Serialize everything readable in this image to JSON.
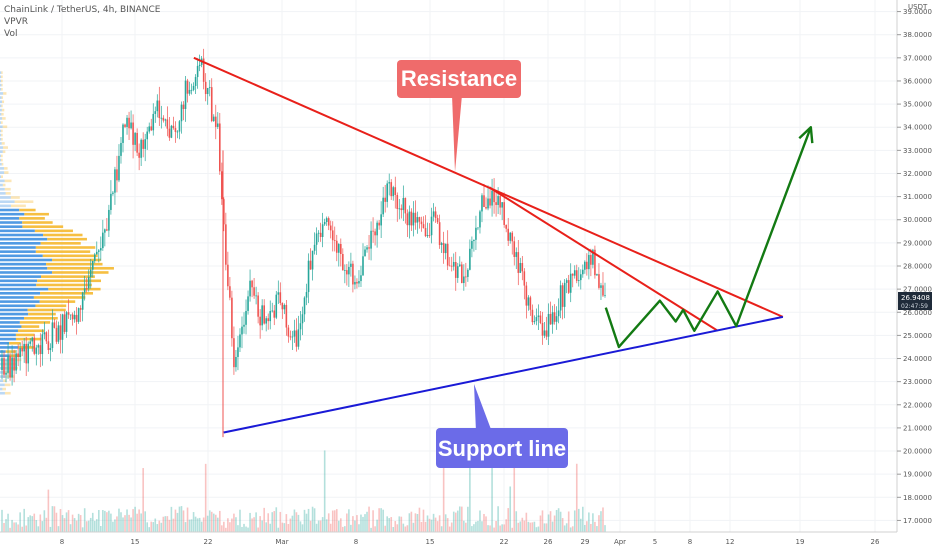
{
  "header": {
    "symbol_line": "ChainLink / TetherUS, 4h, BINANCE",
    "indicator_1": "VPVR",
    "indicator_2": "Vol",
    "currency": "USDT"
  },
  "price_badge": {
    "price": "26.9408",
    "countdown": "02:47:59"
  },
  "callouts": {
    "resistance": "Resistance",
    "support": "Support line"
  },
  "colors": {
    "resistance": "#e8201a",
    "support": "#1a1ad6",
    "projection": "#137a13",
    "callout_red": "#ef6b6b",
    "callout_blue": "#6b6be8",
    "candle_up": "#26a69a",
    "candle_down": "#ef5350",
    "vp_blue": "#3d8fe0",
    "vp_yellow": "#f5b82e",
    "badge": "#1f2b3a"
  },
  "chart_data": {
    "type": "line",
    "y_axis": {
      "min": 16.5,
      "max": 39.5,
      "tick_labels": [
        "17.0000",
        "18.0000",
        "19.0000",
        "20.0000",
        "21.0000",
        "22.0000",
        "23.0000",
        "24.0000",
        "25.0000",
        "26.0000",
        "27.0000",
        "28.0000",
        "29.0000",
        "30.0000",
        "31.0000",
        "32.0000",
        "33.0000",
        "34.0000",
        "35.0000",
        "36.0000",
        "37.0000",
        "38.0000",
        "39.0000"
      ]
    },
    "x_axis": {
      "tick_labels": [
        "8",
        "15",
        "22",
        "Mar",
        "8",
        "15",
        "22",
        "26",
        "29",
        "Apr",
        "5",
        "8",
        "12",
        "19",
        "26"
      ]
    },
    "price_path": [
      {
        "t": 0,
        "p": 23.5
      },
      {
        "t": 5,
        "p": 24.6
      },
      {
        "t": 10,
        "p": 26.0
      },
      {
        "t": 14,
        "p": 30.5
      },
      {
        "t": 16,
        "p": 34.5
      },
      {
        "t": 18,
        "p": 33.0
      },
      {
        "t": 20,
        "p": 34.8
      },
      {
        "t": 22,
        "p": 33.5
      },
      {
        "t": 24,
        "p": 35.8
      },
      {
        "t": 26,
        "p": 36.5
      },
      {
        "t": 28,
        "p": 33.5
      },
      {
        "t": 29,
        "p": 28.0
      },
      {
        "t": 30,
        "p": 24.0
      },
      {
        "t": 32,
        "p": 27.0
      },
      {
        "t": 34,
        "p": 25.5
      },
      {
        "t": 36,
        "p": 26.5
      },
      {
        "t": 38,
        "p": 24.5
      },
      {
        "t": 40,
        "p": 28.5
      },
      {
        "t": 42,
        "p": 30.5
      },
      {
        "t": 44,
        "p": 28.0
      },
      {
        "t": 46,
        "p": 27.5
      },
      {
        "t": 48,
        "p": 29.5
      },
      {
        "t": 50,
        "p": 31.5
      },
      {
        "t": 52,
        "p": 30.5
      },
      {
        "t": 54,
        "p": 29.5
      },
      {
        "t": 56,
        "p": 30.0
      },
      {
        "t": 58,
        "p": 28.0
      },
      {
        "t": 60,
        "p": 27.5
      },
      {
        "t": 62,
        "p": 30.5
      },
      {
        "t": 64,
        "p": 31.0
      },
      {
        "t": 66,
        "p": 29.0
      },
      {
        "t": 68,
        "p": 26.5
      },
      {
        "t": 70,
        "p": 25.0
      },
      {
        "t": 72,
        "p": 26.5
      },
      {
        "t": 74,
        "p": 27.5
      },
      {
        "t": 76,
        "p": 28.5
      },
      {
        "t": 78,
        "p": 27.0
      }
    ],
    "trendlines": [
      {
        "role": "resistance",
        "from": [
          0.208,
          37.0
        ],
        "to": [
          0.84,
          25.8
        ]
      },
      {
        "role": "resistance",
        "from": [
          0.525,
          31.4
        ],
        "to": [
          0.77,
          25.2
        ]
      },
      {
        "role": "support",
        "from": [
          0.24,
          20.8
        ],
        "to": [
          0.84,
          25.8
        ]
      }
    ],
    "projection_path": [
      [
        0.65,
        26.2
      ],
      [
        0.664,
        24.5
      ],
      [
        0.708,
        26.5
      ],
      [
        0.725,
        25.6
      ],
      [
        0.733,
        26.1
      ],
      [
        0.745,
        25.2
      ],
      [
        0.77,
        26.9
      ],
      [
        0.79,
        25.4
      ],
      [
        0.87,
        34.0
      ]
    ]
  }
}
